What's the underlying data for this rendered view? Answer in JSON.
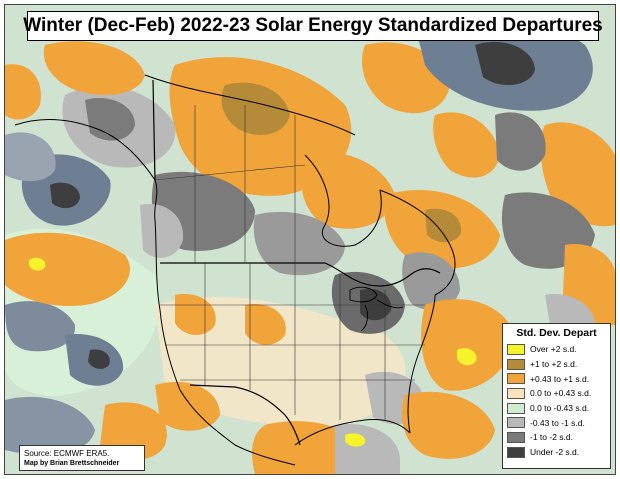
{
  "title": "Winter (Dec-Feb) 2022-23 Solar Energy Standardized Departures",
  "legend": {
    "title": "Std. Dev. Depart",
    "items": [
      {
        "label": "Over +2 s.d.",
        "color": "#f6f22c"
      },
      {
        "label": "+1 to +2 s.d.",
        "color": "#b58a38"
      },
      {
        "label": "+0.43 to +1 s.d.",
        "color": "#f0a43a"
      },
      {
        "label": "0.0 to +0.43 s.d.",
        "color": "#fbe3bb"
      },
      {
        "label": "0.0 to -0.43 s.d.",
        "color": "#cfeccf"
      },
      {
        "label": "-0.43 to -1 s.d.",
        "color": "#b9b9b9"
      },
      {
        "label": "-1 to -2 s.d.",
        "color": "#7b7b7b"
      },
      {
        "label": "Under -2 s.d.",
        "color": "#3e3e3e"
      }
    ]
  },
  "source": {
    "line1": "Source: ECMWF ERA5.",
    "line2": "Map by Brian Brettschneider"
  },
  "colors": {
    "background_pale": "#cfe3d0",
    "orange": "#f0a43a",
    "brown": "#b58a38",
    "yellow": "#f6f22c",
    "light_gray": "#b9b9b9",
    "mid_gray": "#7b7b7b",
    "dark_gray": "#3e3e3e",
    "pale_orange": "#fbe3bb",
    "pale_green": "#cfeccf",
    "blue_gray": "#6f7f93",
    "boundary": "#000000"
  }
}
